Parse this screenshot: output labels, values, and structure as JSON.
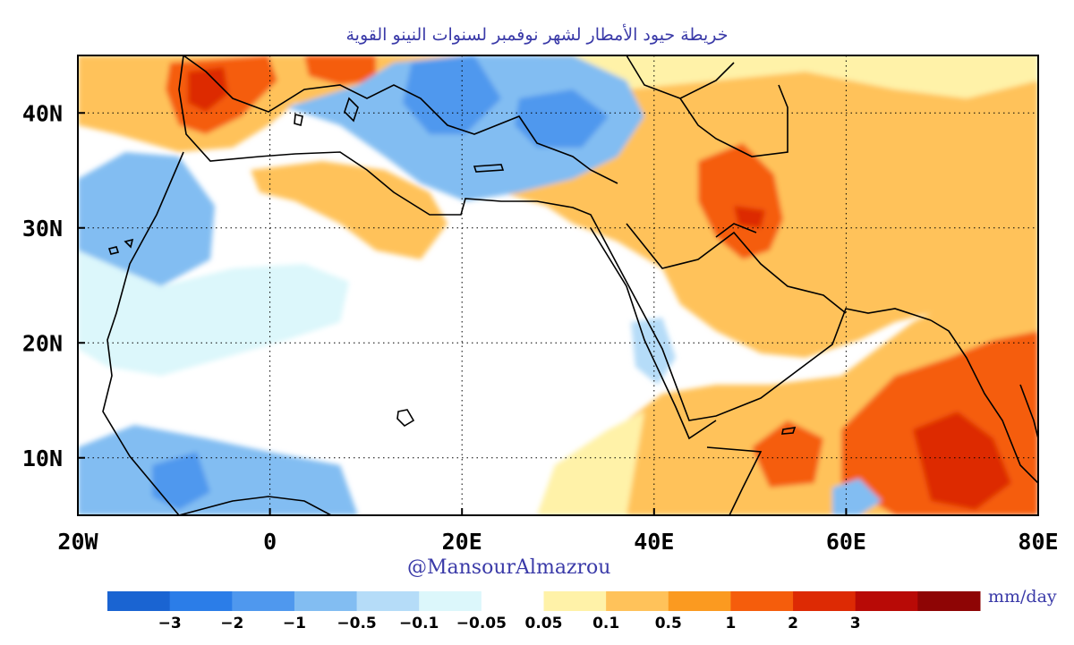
{
  "title": "خريطة حيود الأمطار لشهر نوفمبر لسنوات النينو القوية",
  "credit": "@MansourAlmazrou",
  "map": {
    "lon_range": [
      -20,
      80
    ],
    "lat_range": [
      5,
      45
    ],
    "x_ticks": [
      {
        "lon": -20,
        "label": "20W"
      },
      {
        "lon": 0,
        "label": "0"
      },
      {
        "lon": 20,
        "label": "20E"
      },
      {
        "lon": 40,
        "label": "40E"
      },
      {
        "lon": 60,
        "label": "60E"
      },
      {
        "lon": 80,
        "label": "80E"
      }
    ],
    "y_ticks": [
      {
        "lat": 10,
        "label": "10N"
      },
      {
        "lat": 20,
        "label": "20N"
      },
      {
        "lat": 30,
        "label": "30N"
      },
      {
        "lat": 40,
        "label": "40N"
      }
    ],
    "grid": "dotted"
  },
  "colorbar": {
    "units": "mm/day",
    "bins": [
      "#1a64d2",
      "#2b7de8",
      "#4f98ee",
      "#82bdf2",
      "#b5dcf8",
      "#dcf7fb",
      "#ffffff",
      "#fff2a8",
      "#ffc25a",
      "#fb9a20",
      "#f55d0c",
      "#dd2a04",
      "#b80a06",
      "#8e0505"
    ],
    "labels": [
      "−3",
      "−2",
      "−1",
      "−0.5",
      "−0.1",
      "−0.05",
      "0.05",
      "0.1",
      "0.5",
      "1",
      "2",
      "3"
    ]
  }
}
